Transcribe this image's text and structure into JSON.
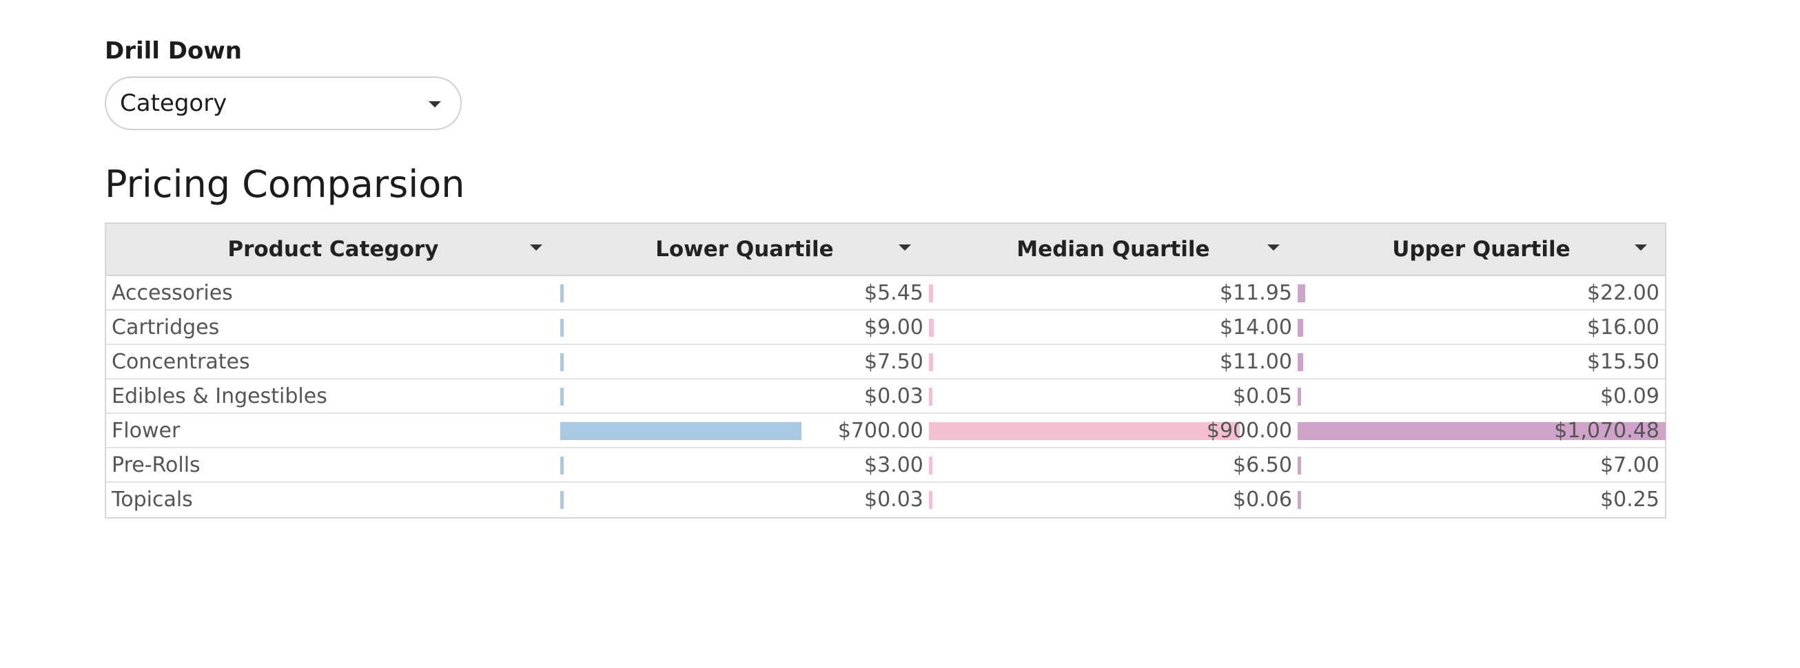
{
  "drill_down": {
    "label": "Drill Down",
    "selected": "Category"
  },
  "title": "Pricing Comparsion",
  "colors": {
    "lower": "#a9c9e3",
    "median": "#f3bfd1",
    "upper": "#cfa2c9"
  },
  "chart_data": {
    "type": "table",
    "columns": [
      "Product Category",
      "Lower Quartile",
      "Median Quartile",
      "Upper Quartile"
    ],
    "max_value": 1070.48,
    "rows": [
      {
        "category": "Accessories",
        "lower": 5.45,
        "median": 11.95,
        "upper": 22.0,
        "lower_text": "$5.45",
        "median_text": "$11.95",
        "upper_text": "$22.00"
      },
      {
        "category": "Cartridges",
        "lower": 9.0,
        "median": 14.0,
        "upper": 16.0,
        "lower_text": "$9.00",
        "median_text": "$14.00",
        "upper_text": "$16.00"
      },
      {
        "category": "Concentrates",
        "lower": 7.5,
        "median": 11.0,
        "upper": 15.5,
        "lower_text": "$7.50",
        "median_text": "$11.00",
        "upper_text": "$15.50"
      },
      {
        "category": "Edibles & Ingestibles",
        "lower": 0.03,
        "median": 0.05,
        "upper": 0.09,
        "lower_text": "$0.03",
        "median_text": "$0.05",
        "upper_text": "$0.09"
      },
      {
        "category": "Flower",
        "lower": 700.0,
        "median": 900.0,
        "upper": 1070.48,
        "lower_text": "$700.00",
        "median_text": "$900.00",
        "upper_text": "$1,070.48"
      },
      {
        "category": "Pre-Rolls",
        "lower": 3.0,
        "median": 6.5,
        "upper": 7.0,
        "lower_text": "$3.00",
        "median_text": "$6.50",
        "upper_text": "$7.00"
      },
      {
        "category": "Topicals",
        "lower": 0.03,
        "median": 0.06,
        "upper": 0.25,
        "lower_text": "$0.03",
        "median_text": "$0.06",
        "upper_text": "$0.25"
      }
    ]
  }
}
